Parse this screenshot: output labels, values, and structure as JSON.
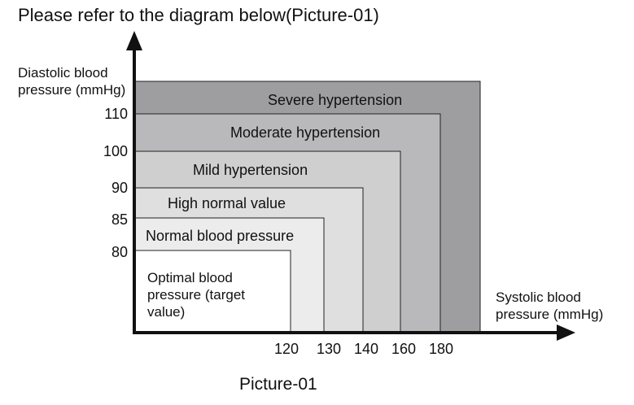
{
  "title": "Please refer to the diagram below(Picture-01)",
  "y_axis": {
    "label": "Diastolic blood pressure (mmHg)",
    "ticks": [
      110,
      100,
      90,
      85,
      80
    ]
  },
  "x_axis": {
    "label": "Systolic blood pressure (mmHg)",
    "ticks": [
      120,
      130,
      140,
      160,
      180
    ]
  },
  "zones": [
    {
      "label": "Severe hypertension"
    },
    {
      "label": "Moderate hypertension"
    },
    {
      "label": "Mild hypertension"
    },
    {
      "label": "High normal value"
    },
    {
      "label": "Normal blood pressure"
    },
    {
      "label": "Optimal blood pressure (target value)"
    }
  ],
  "caption": "Picture-01"
}
